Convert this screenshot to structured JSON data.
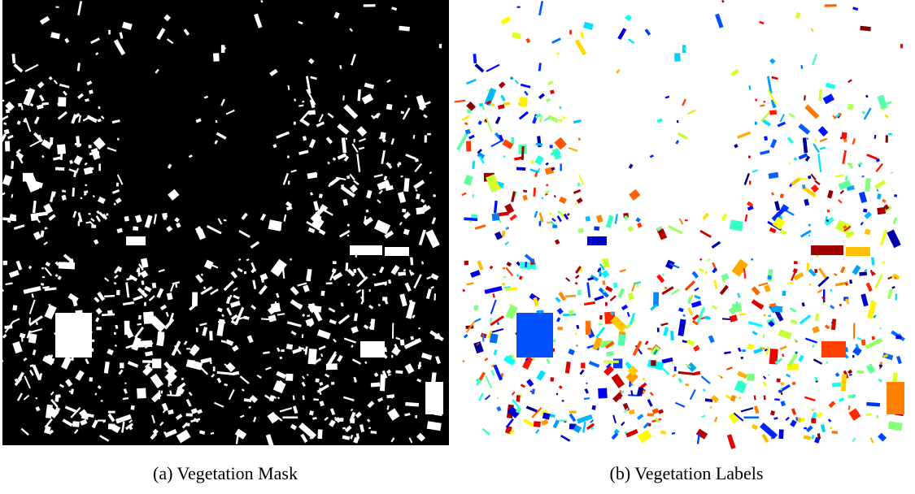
{
  "figure": {
    "panels": [
      {
        "caption": "(a) Vegetation Mask"
      },
      {
        "caption": "(b) Vegetation Labels"
      }
    ]
  }
}
